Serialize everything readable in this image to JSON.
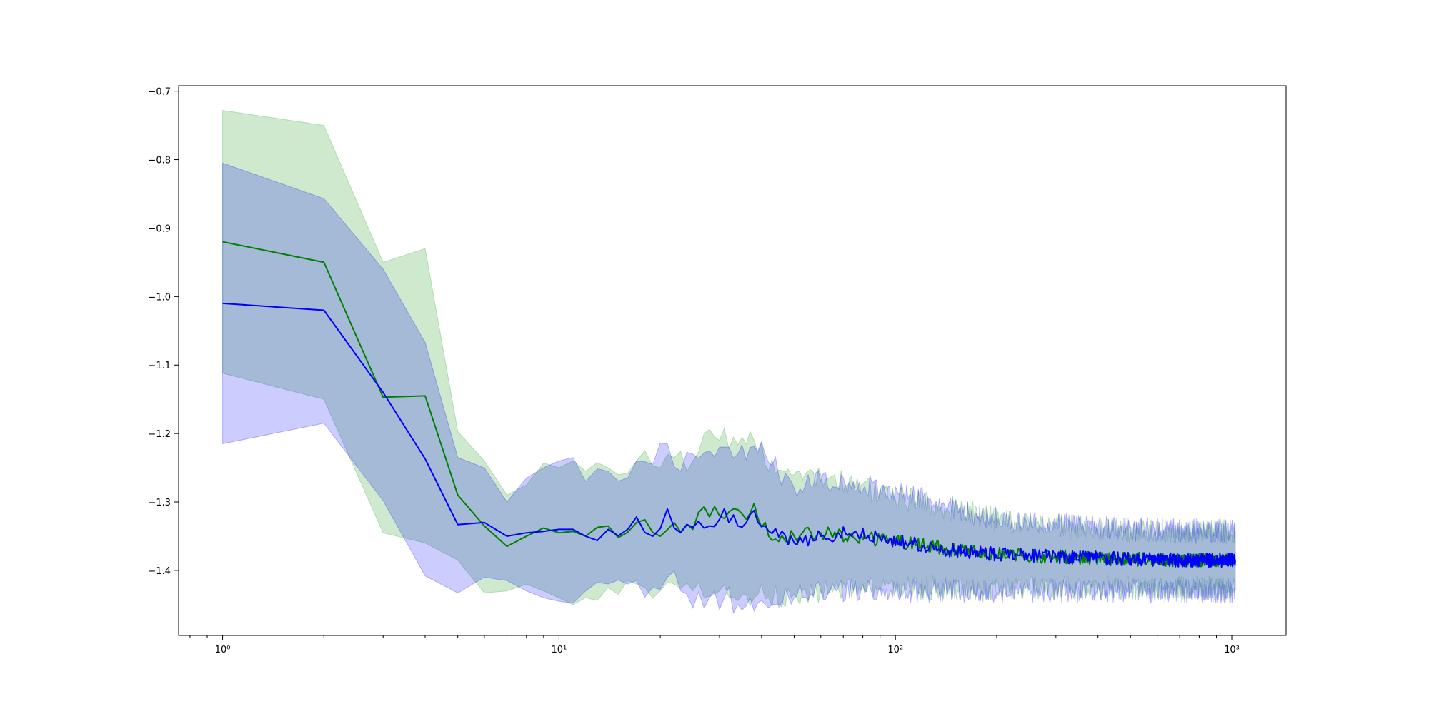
{
  "chart_data": {
    "type": "line",
    "title": "",
    "xlabel": "",
    "ylabel": "",
    "xscale": "log",
    "xlim": [
      0.74,
      1450
    ],
    "ylim": [
      -1.495,
      -0.692
    ],
    "grid": false,
    "legend": "none",
    "x_ticks": [
      {
        "value": 1,
        "label": "10⁰"
      },
      {
        "value": 10,
        "label": "10¹"
      },
      {
        "value": 100,
        "label": "10²"
      },
      {
        "value": 1000,
        "label": "10³"
      }
    ],
    "y_ticks": [
      {
        "value": -0.7,
        "label": "−0.7"
      },
      {
        "value": -0.8,
        "label": "−0.8"
      },
      {
        "value": -0.9,
        "label": "−0.9"
      },
      {
        "value": -1.0,
        "label": "−1.0"
      },
      {
        "value": -1.1,
        "label": "−1.1"
      },
      {
        "value": -1.2,
        "label": "−1.2"
      },
      {
        "value": -1.3,
        "label": "−1.3"
      },
      {
        "value": -1.4,
        "label": "−1.4"
      }
    ],
    "x_range": [
      1,
      1024
    ],
    "series": [
      {
        "color": "#008000",
        "band_color": "#2ca02c",
        "band_opacity": 0.23,
        "points": [
          {
            "x": 1,
            "y": -0.92,
            "lo": -1.112,
            "hi": -0.728
          },
          {
            "x": 2,
            "y": -0.95,
            "lo": -1.15,
            "hi": -0.75
          },
          {
            "x": 3,
            "y": -1.147,
            "lo": -1.345,
            "hi": -0.95
          },
          {
            "x": 4,
            "y": -1.145,
            "lo": -1.36,
            "hi": -0.93
          },
          {
            "x": 5,
            "y": -1.29,
            "lo": -1.385,
            "hi": -1.197
          },
          {
            "x": 6,
            "y": -1.335,
            "lo": -1.433,
            "hi": -1.24
          },
          {
            "x": 7,
            "y": -1.365,
            "lo": -1.43,
            "hi": -1.29
          },
          {
            "x": 8,
            "y": -1.35,
            "lo": -1.42,
            "hi": -1.275
          },
          {
            "x": 9,
            "y": -1.338,
            "lo": -1.43,
            "hi": -1.243
          },
          {
            "x": 10,
            "y": -1.345,
            "lo": -1.44,
            "hi": -1.25
          },
          {
            "x": 11,
            "y": -1.343,
            "lo": -1.45,
            "hi": -1.24
          },
          {
            "x": 12,
            "y": -1.35,
            "lo": -1.44,
            "hi": -1.255
          },
          {
            "x": 14,
            "y": -1.335,
            "lo": -1.425,
            "hi": -1.25
          },
          {
            "x": 15,
            "y": -1.352,
            "lo": -1.435,
            "hi": -1.26
          },
          {
            "x": 17,
            "y": -1.33,
            "lo": -1.42,
            "hi": -1.24
          },
          {
            "x": 18,
            "y": -1.326,
            "lo": -1.425,
            "hi": -1.225
          },
          {
            "x": 20,
            "y": -1.35,
            "lo": -1.43,
            "hi": -1.25
          },
          {
            "x": 22,
            "y": -1.33,
            "lo": -1.42,
            "hi": -1.235
          },
          {
            "x": 25,
            "y": -1.34,
            "lo": -1.43,
            "hi": -1.24
          },
          {
            "x": 27,
            "y": -1.307,
            "lo": -1.44,
            "hi": -1.2
          },
          {
            "x": 30,
            "y": -1.32,
            "lo": -1.43,
            "hi": -1.21
          },
          {
            "x": 33,
            "y": -1.31,
            "lo": -1.44,
            "hi": -1.205
          },
          {
            "x": 36,
            "y": -1.325,
            "lo": -1.435,
            "hi": -1.215
          },
          {
            "x": 38,
            "y": -1.302,
            "lo": -1.44,
            "hi": -1.21
          },
          {
            "x": 42,
            "y": -1.35,
            "lo": -1.44,
            "hi": -1.255
          },
          {
            "x": 50,
            "y": -1.35,
            "lo": -1.435,
            "hi": -1.26
          },
          {
            "x": 60,
            "y": -1.345,
            "lo": -1.43,
            "hi": -1.26
          },
          {
            "x": 75,
            "y": -1.352,
            "lo": -1.43,
            "hi": -1.275
          },
          {
            "x": 90,
            "y": -1.355,
            "lo": -1.425,
            "hi": -1.285
          },
          {
            "x": 110,
            "y": -1.36,
            "lo": -1.425,
            "hi": -1.295
          },
          {
            "x": 140,
            "y": -1.368,
            "lo": -1.425,
            "hi": -1.31
          },
          {
            "x": 180,
            "y": -1.375,
            "lo": -1.43,
            "hi": -1.32
          },
          {
            "x": 230,
            "y": -1.378,
            "lo": -1.425,
            "hi": -1.33
          },
          {
            "x": 300,
            "y": -1.38,
            "lo": -1.425,
            "hi": -1.335
          },
          {
            "x": 400,
            "y": -1.383,
            "lo": -1.425,
            "hi": -1.34
          },
          {
            "x": 550,
            "y": -1.384,
            "lo": -1.425,
            "hi": -1.342
          },
          {
            "x": 750,
            "y": -1.385,
            "lo": -1.425,
            "hi": -1.344
          },
          {
            "x": 1024,
            "y": -1.385,
            "lo": -1.427,
            "hi": -1.343
          }
        ]
      },
      {
        "color": "#0000ff",
        "band_color": "#0000ff",
        "band_opacity": 0.2,
        "points": [
          {
            "x": 1,
            "y": -1.01,
            "lo": -1.215,
            "hi": -0.805
          },
          {
            "x": 2,
            "y": -1.02,
            "lo": -1.185,
            "hi": -0.857
          },
          {
            "x": 3,
            "y": -1.14,
            "lo": -1.298,
            "hi": -0.96
          },
          {
            "x": 4,
            "y": -1.237,
            "lo": -1.408,
            "hi": -1.067
          },
          {
            "x": 5,
            "y": -1.333,
            "lo": -1.433,
            "hi": -1.235
          },
          {
            "x": 6,
            "y": -1.33,
            "lo": -1.41,
            "hi": -1.25
          },
          {
            "x": 7,
            "y": -1.35,
            "lo": -1.415,
            "hi": -1.3
          },
          {
            "x": 8,
            "y": -1.345,
            "lo": -1.43,
            "hi": -1.265
          },
          {
            "x": 9,
            "y": -1.343,
            "lo": -1.44,
            "hi": -1.25
          },
          {
            "x": 10,
            "y": -1.34,
            "lo": -1.445,
            "hi": -1.24
          },
          {
            "x": 11,
            "y": -1.34,
            "lo": -1.448,
            "hi": -1.235
          },
          {
            "x": 12,
            "y": -1.35,
            "lo": -1.43,
            "hi": -1.27
          },
          {
            "x": 14,
            "y": -1.34,
            "lo": -1.42,
            "hi": -1.255
          },
          {
            "x": 16,
            "y": -1.34,
            "lo": -1.42,
            "hi": -1.265
          },
          {
            "x": 17,
            "y": -1.322,
            "lo": -1.415,
            "hi": -1.24
          },
          {
            "x": 19,
            "y": -1.35,
            "lo": -1.425,
            "hi": -1.245
          },
          {
            "x": 21,
            "y": -1.31,
            "lo": -1.41,
            "hi": -1.215
          },
          {
            "x": 23,
            "y": -1.345,
            "lo": -1.43,
            "hi": -1.255
          },
          {
            "x": 25,
            "y": -1.337,
            "lo": -1.455,
            "hi": -1.23
          },
          {
            "x": 28,
            "y": -1.335,
            "lo": -1.44,
            "hi": -1.225
          },
          {
            "x": 31,
            "y": -1.31,
            "lo": -1.44,
            "hi": -1.22
          },
          {
            "x": 34,
            "y": -1.335,
            "lo": -1.45,
            "hi": -1.23
          },
          {
            "x": 37,
            "y": -1.318,
            "lo": -1.44,
            "hi": -1.22
          },
          {
            "x": 41,
            "y": -1.335,
            "lo": -1.45,
            "hi": -1.23
          },
          {
            "x": 50,
            "y": -1.36,
            "lo": -1.44,
            "hi": -1.28
          },
          {
            "x": 60,
            "y": -1.35,
            "lo": -1.43,
            "hi": -1.27
          },
          {
            "x": 75,
            "y": -1.345,
            "lo": -1.43,
            "hi": -1.27
          },
          {
            "x": 90,
            "y": -1.352,
            "lo": -1.425,
            "hi": -1.28
          },
          {
            "x": 110,
            "y": -1.36,
            "lo": -1.43,
            "hi": -1.29
          },
          {
            "x": 140,
            "y": -1.37,
            "lo": -1.43,
            "hi": -1.305
          },
          {
            "x": 180,
            "y": -1.375,
            "lo": -1.43,
            "hi": -1.32
          },
          {
            "x": 230,
            "y": -1.378,
            "lo": -1.43,
            "hi": -1.327
          },
          {
            "x": 300,
            "y": -1.38,
            "lo": -1.43,
            "hi": -1.333
          },
          {
            "x": 400,
            "y": -1.382,
            "lo": -1.43,
            "hi": -1.338
          },
          {
            "x": 550,
            "y": -1.384,
            "lo": -1.43,
            "hi": -1.34
          },
          {
            "x": 750,
            "y": -1.385,
            "lo": -1.43,
            "hi": -1.342
          },
          {
            "x": 1024,
            "y": -1.385,
            "lo": -1.43,
            "hi": -1.342
          }
        ]
      }
    ]
  }
}
